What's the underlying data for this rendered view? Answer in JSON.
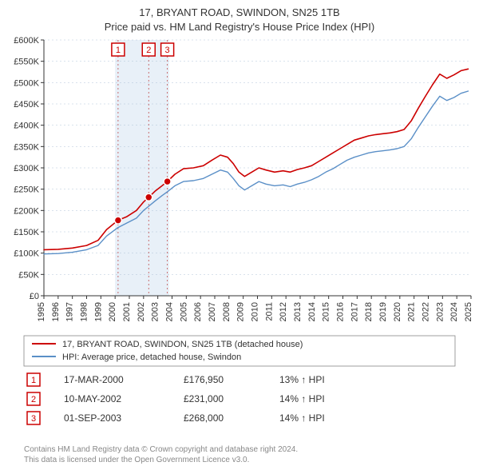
{
  "title_line1": "17, BRYANT ROAD, SWINDON, SN25 1TB",
  "title_line2": "Price paid vs. HM Land Registry's House Price Index (HPI)",
  "chart": {
    "type": "line-with-markers",
    "background_color": "#ffffff",
    "shaded_band_color": "#e8f0f8",
    "grid_color": "#9fb7cf",
    "dashed_line_color": "#c05050",
    "y": {
      "min": 0,
      "max": 600000,
      "tick_step": 50000,
      "labels": [
        "£0",
        "£50K",
        "£100K",
        "£150K",
        "£200K",
        "£250K",
        "£300K",
        "£350K",
        "£400K",
        "£450K",
        "£500K",
        "£550K",
        "£600K"
      ],
      "label_fontsize": 11
    },
    "x": {
      "min": 1995,
      "max": 2025,
      "tick_step": 1,
      "labels": [
        "1995",
        "1996",
        "1997",
        "1998",
        "1999",
        "2000",
        "2001",
        "2002",
        "2003",
        "2004",
        "2005",
        "2006",
        "2007",
        "2008",
        "2009",
        "2010",
        "2011",
        "2012",
        "2013",
        "2014",
        "2015",
        "2016",
        "2017",
        "2018",
        "2019",
        "2020",
        "2021",
        "2022",
        "2023",
        "2024",
        "2025"
      ],
      "label_fontsize": 11,
      "label_rotation": -90
    },
    "series": [
      {
        "name": "property",
        "label": "17, BRYANT ROAD, SWINDON, SN25 1TB (detached house)",
        "color": "#cc0000",
        "line_width": 1.6,
        "data_year_value": [
          [
            1995,
            108000
          ],
          [
            1996,
            109000
          ],
          [
            1997,
            112000
          ],
          [
            1998,
            118000
          ],
          [
            1998.8,
            130000
          ],
          [
            1999.4,
            155000
          ],
          [
            2000.2,
            176950
          ],
          [
            2000.8,
            185000
          ],
          [
            2001.5,
            200000
          ],
          [
            2002.0,
            220000
          ],
          [
            2002.36,
            231000
          ],
          [
            2002.8,
            245000
          ],
          [
            2003.3,
            258000
          ],
          [
            2003.67,
            268000
          ],
          [
            2004.2,
            285000
          ],
          [
            2004.8,
            298000
          ],
          [
            2005.5,
            300000
          ],
          [
            2006.2,
            305000
          ],
          [
            2006.8,
            318000
          ],
          [
            2007.4,
            330000
          ],
          [
            2007.9,
            325000
          ],
          [
            2008.3,
            310000
          ],
          [
            2008.7,
            290000
          ],
          [
            2009.1,
            280000
          ],
          [
            2009.6,
            290000
          ],
          [
            2010.1,
            300000
          ],
          [
            2010.6,
            295000
          ],
          [
            2011.2,
            290000
          ],
          [
            2011.8,
            293000
          ],
          [
            2012.3,
            290000
          ],
          [
            2012.8,
            296000
          ],
          [
            2013.3,
            300000
          ],
          [
            2013.8,
            305000
          ],
          [
            2014.3,
            315000
          ],
          [
            2014.8,
            325000
          ],
          [
            2015.3,
            335000
          ],
          [
            2015.8,
            345000
          ],
          [
            2016.3,
            355000
          ],
          [
            2016.8,
            365000
          ],
          [
            2017.3,
            370000
          ],
          [
            2017.8,
            375000
          ],
          [
            2018.3,
            378000
          ],
          [
            2018.8,
            380000
          ],
          [
            2019.3,
            382000
          ],
          [
            2019.8,
            385000
          ],
          [
            2020.3,
            390000
          ],
          [
            2020.8,
            410000
          ],
          [
            2021.3,
            440000
          ],
          [
            2021.8,
            468000
          ],
          [
            2022.3,
            495000
          ],
          [
            2022.8,
            520000
          ],
          [
            2023.3,
            510000
          ],
          [
            2023.8,
            518000
          ],
          [
            2024.3,
            528000
          ],
          [
            2024.8,
            532000
          ]
        ]
      },
      {
        "name": "hpi",
        "label": "HPI: Average price, detached house, Swindon",
        "color": "#5a8fc7",
        "line_width": 1.4,
        "data_year_value": [
          [
            1995,
            98000
          ],
          [
            1996,
            99000
          ],
          [
            1997,
            102000
          ],
          [
            1998,
            108000
          ],
          [
            1998.8,
            118000
          ],
          [
            1999.4,
            140000
          ],
          [
            2000.2,
            160000
          ],
          [
            2000.8,
            170000
          ],
          [
            2001.5,
            182000
          ],
          [
            2002.0,
            200000
          ],
          [
            2002.36,
            210000
          ],
          [
            2002.8,
            222000
          ],
          [
            2003.3,
            235000
          ],
          [
            2003.67,
            244000
          ],
          [
            2004.2,
            258000
          ],
          [
            2004.8,
            268000
          ],
          [
            2005.5,
            270000
          ],
          [
            2006.2,
            275000
          ],
          [
            2006.8,
            285000
          ],
          [
            2007.4,
            295000
          ],
          [
            2007.9,
            290000
          ],
          [
            2008.3,
            275000
          ],
          [
            2008.7,
            258000
          ],
          [
            2009.1,
            248000
          ],
          [
            2009.6,
            258000
          ],
          [
            2010.1,
            268000
          ],
          [
            2010.6,
            262000
          ],
          [
            2011.2,
            258000
          ],
          [
            2011.8,
            260000
          ],
          [
            2012.3,
            256000
          ],
          [
            2012.8,
            262000
          ],
          [
            2013.3,
            266000
          ],
          [
            2013.8,
            272000
          ],
          [
            2014.3,
            280000
          ],
          [
            2014.8,
            290000
          ],
          [
            2015.3,
            298000
          ],
          [
            2015.8,
            308000
          ],
          [
            2016.3,
            318000
          ],
          [
            2016.8,
            325000
          ],
          [
            2017.3,
            330000
          ],
          [
            2017.8,
            335000
          ],
          [
            2018.3,
            338000
          ],
          [
            2018.8,
            340000
          ],
          [
            2019.3,
            342000
          ],
          [
            2019.8,
            345000
          ],
          [
            2020.3,
            350000
          ],
          [
            2020.8,
            368000
          ],
          [
            2021.3,
            395000
          ],
          [
            2021.8,
            420000
          ],
          [
            2022.3,
            445000
          ],
          [
            2022.8,
            468000
          ],
          [
            2023.3,
            458000
          ],
          [
            2023.8,
            465000
          ],
          [
            2024.3,
            475000
          ],
          [
            2024.8,
            480000
          ]
        ]
      }
    ],
    "shaded_band": {
      "from_year": 2000.0,
      "to_year": 2003.8
    },
    "vertical_dashed_at_years": [
      2000.21,
      2002.36,
      2003.67
    ],
    "marker_points": [
      {
        "id": "1",
        "year": 2000.21,
        "value": 176950
      },
      {
        "id": "2",
        "year": 2002.36,
        "value": 231000
      },
      {
        "id": "3",
        "year": 2003.67,
        "value": 268000
      }
    ],
    "marker_annotations_at_top": [
      {
        "id": "1",
        "year": 2000.21
      },
      {
        "id": "2",
        "year": 2002.36
      },
      {
        "id": "3",
        "year": 2003.67
      }
    ],
    "marker_point_fill": "#cc0000",
    "marker_point_stroke": "#ffffff",
    "marker_point_radius": 4.5
  },
  "legend": {
    "border_color": "#888888",
    "items": [
      {
        "color": "#cc0000",
        "label": "17, BRYANT ROAD, SWINDON, SN25 1TB (detached house)"
      },
      {
        "color": "#5a8fc7",
        "label": "HPI: Average price, detached house, Swindon"
      }
    ]
  },
  "transactions": [
    {
      "id": "1",
      "date": "17-MAR-2000",
      "price": "£176,950",
      "delta": "13% ↑ HPI"
    },
    {
      "id": "2",
      "date": "10-MAY-2002",
      "price": "£231,000",
      "delta": "14% ↑ HPI"
    },
    {
      "id": "3",
      "date": "01-SEP-2003",
      "price": "£268,000",
      "delta": "14% ↑ HPI"
    }
  ],
  "footer_line1": "Contains HM Land Registry data © Crown copyright and database right 2024.",
  "footer_line2": "This data is licensed under the Open Government Licence v3.0."
}
